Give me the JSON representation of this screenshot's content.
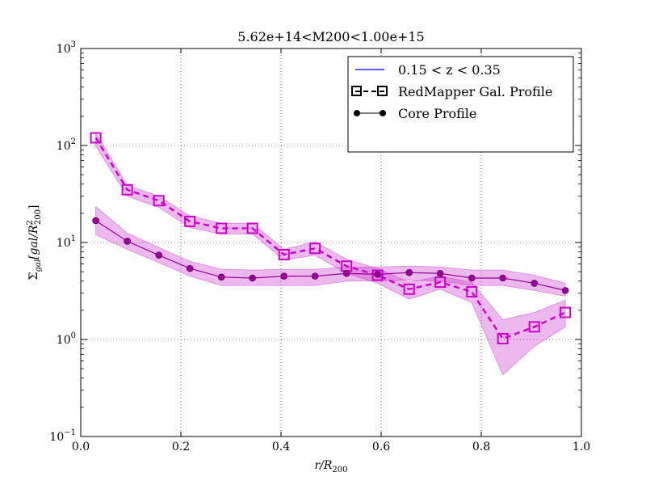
{
  "chart_data": {
    "type": "line",
    "title": "5.62e+14<M200<1.00e+15",
    "xlabel": "r/R",
    "xlabel_sub": "200",
    "ylabel": "Σ",
    "ylabel_sub": "gal",
    "ylabel_rest": "[gal/R",
    "ylabel_rest_sup": "2",
    "ylabel_rest_sub": "200",
    "ylabel_close": "]",
    "xlim": [
      0.0,
      1.0
    ],
    "ylim": [
      0.1,
      1000
    ],
    "yscale": "log",
    "grid": true,
    "x_ticks": [
      {
        "value": 0.0,
        "label": "0.0"
      },
      {
        "value": 0.2,
        "label": "0.2"
      },
      {
        "value": 0.4,
        "label": "0.4"
      },
      {
        "value": 0.6,
        "label": "0.6"
      },
      {
        "value": 0.8,
        "label": "0.8"
      },
      {
        "value": 1.0,
        "label": "1.0"
      }
    ],
    "y_ticks": [
      {
        "value": 0.1,
        "base": "10",
        "exp": "−1"
      },
      {
        "value": 1,
        "base": "10",
        "exp": "0"
      },
      {
        "value": 10,
        "base": "10",
        "exp": "1"
      },
      {
        "value": 100,
        "base": "10",
        "exp": "2"
      },
      {
        "value": 1000,
        "base": "10",
        "exp": "3"
      }
    ],
    "legend": {
      "placement": "top-right",
      "entries": [
        {
          "label": "0.15 < z < 0.35",
          "style": "line",
          "color": "#0000ff"
        },
        {
          "label": "RedMapper Gal. Profile",
          "style": "dashed-square",
          "color": "#000000"
        },
        {
          "label": "Core Profile",
          "style": "line-circle",
          "color": "#000000"
        }
      ]
    },
    "series": [
      {
        "name": "RedMapper Gal. Profile",
        "style": "dashed-square",
        "color": "#cc00cc",
        "x": [
          0.03,
          0.093,
          0.156,
          0.218,
          0.281,
          0.343,
          0.406,
          0.468,
          0.531,
          0.593,
          0.656,
          0.718,
          0.781,
          0.843,
          0.906,
          0.968
        ],
        "y": [
          120,
          35,
          27,
          16.5,
          14,
          14,
          7.5,
          8.7,
          5.7,
          4.6,
          3.3,
          3.9,
          3.1,
          1.02,
          1.35,
          1.9
        ],
        "y_low": [
          98,
          30,
          23,
          14.2,
          12.2,
          12.2,
          6.6,
          7.4,
          4.8,
          3.8,
          2.6,
          3.3,
          2.4,
          0.43,
          0.85,
          1.35
        ],
        "y_high": [
          135,
          39,
          30,
          18.8,
          15.8,
          15.8,
          8.5,
          10.2,
          6.7,
          5.4,
          3.9,
          4.5,
          3.9,
          1.6,
          1.9,
          2.55
        ]
      },
      {
        "name": "Core Profile",
        "style": "line-circle",
        "color": "#990099",
        "x": [
          0.03,
          0.093,
          0.156,
          0.218,
          0.281,
          0.343,
          0.406,
          0.468,
          0.531,
          0.593,
          0.656,
          0.718,
          0.781,
          0.843,
          0.906,
          0.968
        ],
        "y": [
          16.8,
          10.3,
          7.4,
          5.4,
          4.4,
          4.3,
          4.5,
          4.5,
          4.8,
          4.7,
          4.9,
          4.8,
          4.3,
          4.3,
          3.8,
          3.2
        ],
        "y_low": [
          12,
          8.5,
          6.2,
          4.5,
          3.6,
          3.6,
          3.6,
          3.6,
          4.0,
          4.0,
          4.1,
          4.0,
          3.6,
          3.6,
          3.2,
          2.8
        ],
        "y_high": [
          23.5,
          12.5,
          8.9,
          6.4,
          5.3,
          5.2,
          5.3,
          5.3,
          5.6,
          5.6,
          5.7,
          5.6,
          5.2,
          5.2,
          4.6,
          3.8
        ]
      }
    ]
  }
}
